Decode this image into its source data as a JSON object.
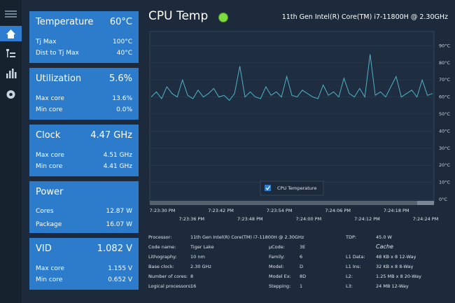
{
  "header": {
    "title": "CPU Temp",
    "processor": "11th Gen Intel(R) Core(TM) i7-11800H @ 2.30GHz"
  },
  "panels": [
    {
      "title": "Temperature",
      "value": "60°C",
      "rows": [
        {
          "label": "Tj Max",
          "value": "100°C"
        },
        {
          "label": "Dist to Tj Max",
          "value": "40°C"
        }
      ]
    },
    {
      "title": "Utilization",
      "value": "5.6%",
      "rows": [
        {
          "label": "Max core",
          "value": "13.6%"
        },
        {
          "label": "Min core",
          "value": "0.0%"
        }
      ]
    },
    {
      "title": "Clock",
      "value": "4.47 GHz",
      "rows": [
        {
          "label": "Max core",
          "value": "4.51 GHz"
        },
        {
          "label": "Min core",
          "value": "4.41 GHz"
        }
      ]
    },
    {
      "title": "Power",
      "rows": [
        {
          "label": "Cores",
          "value": "12.87 W"
        },
        {
          "label": "Package",
          "value": "16.07 W"
        }
      ]
    },
    {
      "title": "VID",
      "value": "1.082 V",
      "rows": [
        {
          "label": "Max core",
          "value": "1.155 V"
        },
        {
          "label": "Min core",
          "value": "0.652 V"
        }
      ]
    }
  ],
  "chart": {
    "type": "line",
    "series": [
      {
        "name": "CPU Temperature",
        "color": "#4fb3c8",
        "values": [
          60,
          63,
          59,
          66,
          62,
          60,
          70,
          61,
          59,
          64,
          60,
          62,
          65,
          60,
          61,
          58,
          62,
          78,
          60,
          63,
          60,
          59,
          66,
          61,
          63,
          60,
          72,
          61,
          60,
          64,
          62,
          60,
          59,
          67,
          61,
          63,
          60,
          71,
          62,
          60,
          65,
          60,
          85,
          61,
          63,
          60,
          66,
          72,
          60,
          62,
          64,
          60,
          70,
          61,
          62
        ]
      }
    ],
    "ylim": [
      0,
      100
    ],
    "yticks": [
      {
        "value": 0,
        "label": "0°C"
      },
      {
        "value": 10,
        "label": "10°C"
      },
      {
        "value": 20,
        "label": "20°C"
      },
      {
        "value": 30,
        "label": "30°C"
      },
      {
        "value": 40,
        "label": "40°C"
      },
      {
        "value": 50,
        "label": "50°C"
      },
      {
        "value": 60,
        "label": "60°C"
      },
      {
        "value": 70,
        "label": "70°C"
      },
      {
        "value": 80,
        "label": "80°C"
      },
      {
        "value": 90,
        "label": "90°C"
      }
    ],
    "xtick_labels": [
      "7:23:30 PM",
      "7:23:36 PM",
      "7:23:42 PM",
      "7:23:48 PM",
      "7:23:54 PM",
      "7:24:00 PM",
      "7:24:06 PM",
      "7:24:12 PM",
      "7:24:18 PM",
      "7:24:24 PM"
    ],
    "grid": true
  },
  "info": {
    "left": [
      {
        "label": "Processor:",
        "value": "11th Gen Intel(R) Core(TM) i7-11800H @ 2.30GHz"
      },
      {
        "label": "Code name:",
        "value": "Tiger Lake"
      },
      {
        "label": "Lithography:",
        "value": "10 nm"
      },
      {
        "label": "Base clock:",
        "value": "2.30 GHz"
      },
      {
        "label": "Number of cores:",
        "value": "8"
      },
      {
        "label": "Logical processors:",
        "value": "16"
      }
    ],
    "middle": [
      {
        "label": "µCode:",
        "value": "3E"
      },
      {
        "label": "Family:",
        "value": "6"
      },
      {
        "label": "Model:",
        "value": "D"
      },
      {
        "label": "Model Ex:",
        "value": "8D"
      },
      {
        "label": "Stepping:",
        "value": "1"
      }
    ],
    "tdp": {
      "label": "TDP:",
      "value": "45.0 W"
    },
    "cache_heading": "Cache",
    "cache": [
      {
        "label": "L1 Data:",
        "value": "48 KB x 8  12-Way"
      },
      {
        "label": "L1 Ins:",
        "value": "32 KB x 8  8-Way"
      },
      {
        "label": "L2:",
        "value": "1.25 MB x 8  20-Way"
      },
      {
        "label": "L3:",
        "value": "24 MB  12-Way"
      }
    ]
  }
}
